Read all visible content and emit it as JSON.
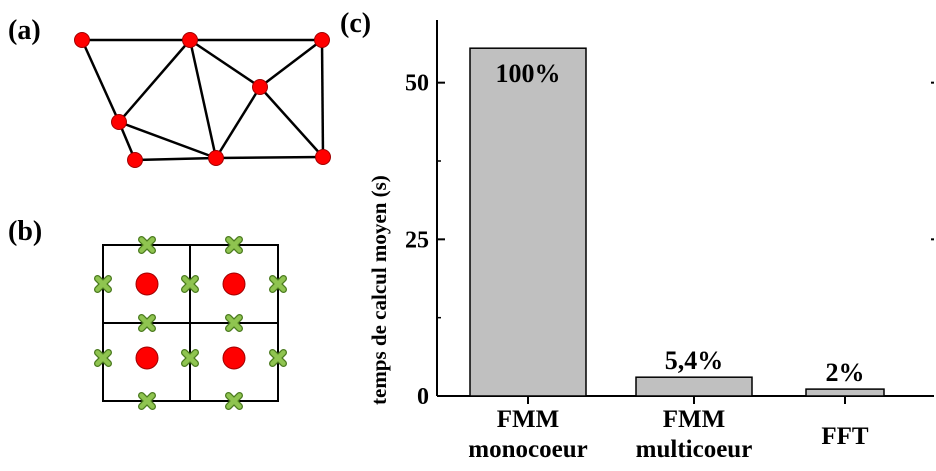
{
  "panels": {
    "a": "(a)",
    "b": "(b)",
    "c": "(c)"
  },
  "colors": {
    "node_red": "#ff0000",
    "cross_green": "#8fc450",
    "bar_gray": "#c0c0c0",
    "line": "#000000"
  },
  "icons": {
    "mesh_node": "red-circle",
    "grid_point": "green-cross"
  },
  "chart_data": {
    "type": "bar",
    "categories": [
      [
        "FMM",
        "monocoeur"
      ],
      [
        "FMM",
        "multicoeur"
      ],
      [
        "FFT"
      ]
    ],
    "values": [
      55.5,
      3.0,
      1.1
    ],
    "bar_labels": [
      "100%",
      "5,4%",
      "2%"
    ],
    "ylabel": "temps de calcul moyen (s)",
    "yticks": [
      0,
      25,
      50
    ],
    "ylim": [
      0,
      60
    ],
    "grid": false,
    "legend": "none"
  }
}
